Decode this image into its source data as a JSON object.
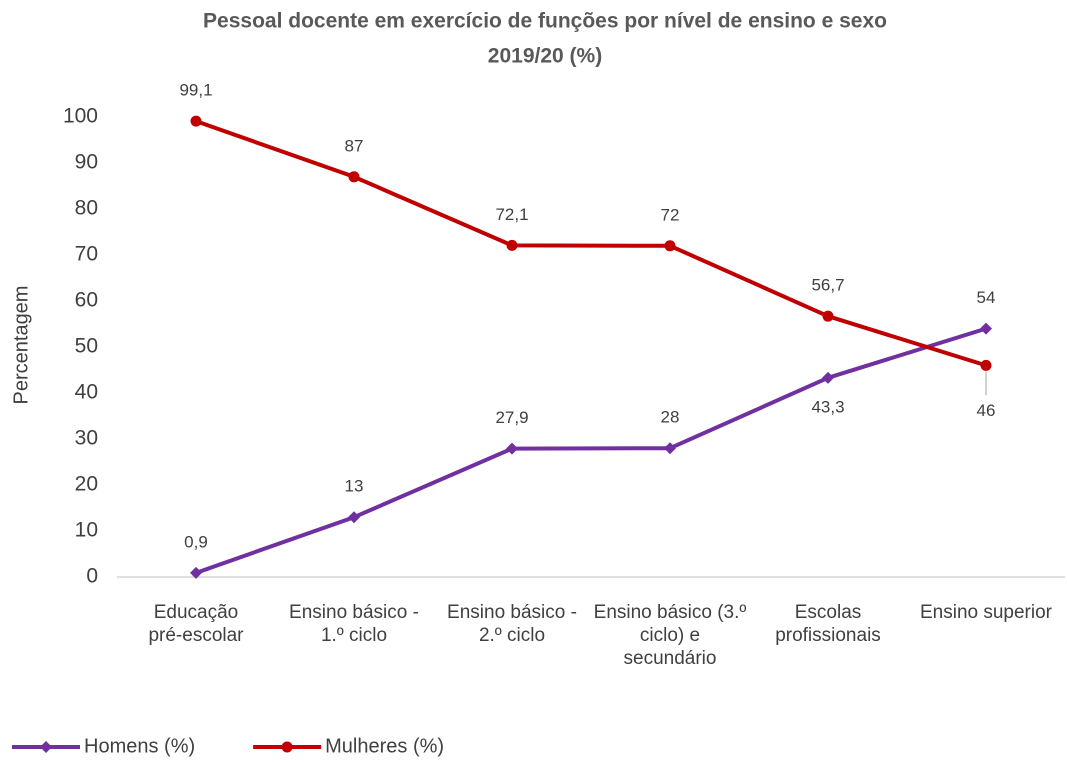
{
  "chart_data": {
    "type": "line",
    "title": "Pessoal docente em exercício de funções por nível de ensino e sexo",
    "subtitle": "2019/20  (%)",
    "y_label": "Percentagem",
    "categories": [
      "Educação pré-escolar",
      "Ensino básico - 1.º ciclo",
      "Ensino básico - 2.º ciclo",
      "Ensino básico (3.º ciclo) e secundário",
      "Escolas profissionais",
      "Ensino superior"
    ],
    "series": [
      {
        "name": "Homens (%)",
        "color": "#7030a0",
        "marker": "diamond",
        "values": [
          0.9,
          13,
          27.9,
          28,
          43.3,
          54
        ],
        "value_labels": [
          "0,9",
          "13",
          "27,9",
          "28",
          "43,3",
          "54"
        ]
      },
      {
        "name": "Mulheres (%)",
        "color": "#c00000",
        "marker": "circle",
        "values": [
          99.1,
          87,
          72.1,
          72,
          56.7,
          46
        ],
        "value_labels": [
          "99,1",
          "87",
          "72,1",
          "72",
          "56,7",
          "46"
        ]
      }
    ],
    "ylim": [
      0,
      100
    ],
    "yticks": [
      0,
      10,
      20,
      30,
      40,
      50,
      60,
      70,
      80,
      90,
      100
    ],
    "grid": false,
    "legend": "bottom-left"
  }
}
